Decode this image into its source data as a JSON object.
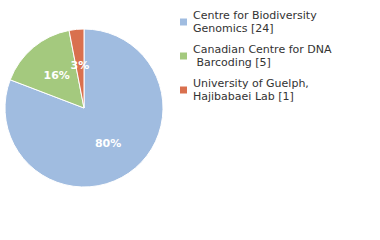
{
  "chart_data": {
    "type": "pie",
    "categories": [
      "Centre for Biodiversity Genomics [24]",
      "Canadian Centre for DNA Barcoding [5]",
      "University of Guelph, Hajibabaei Lab [1]"
    ],
    "values": [
      80,
      16,
      3
    ],
    "value_labels": [
      "80%",
      "16%",
      "3%"
    ],
    "colors": [
      "#a0bce0",
      "#a4c97e",
      "#d9704e"
    ],
    "data_labels": true,
    "legend": "top-right"
  }
}
